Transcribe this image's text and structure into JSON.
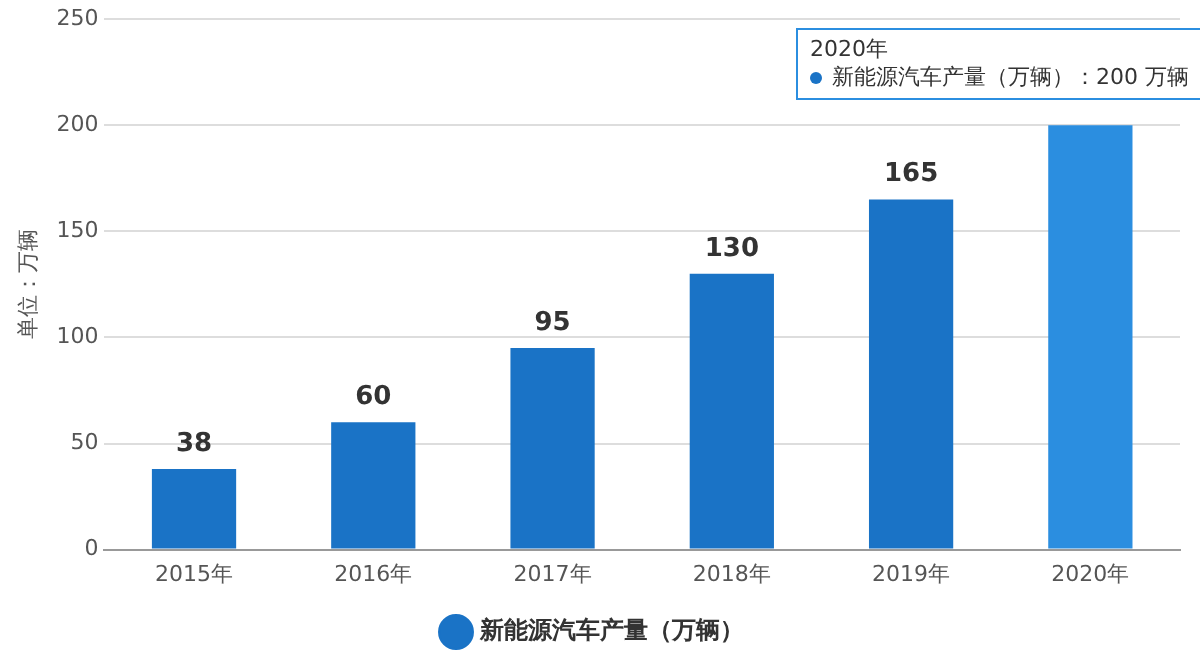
{
  "chart_data": {
    "type": "bar",
    "ylabel": "单位：万辆",
    "categories": [
      "2015年",
      "2016年",
      "2017年",
      "2018年",
      "2019年",
      "2020年"
    ],
    "series": [
      {
        "name": "新能源汽车产量（万辆）",
        "color": "#1a73c6",
        "colors": [
          "#1a73c6",
          "#1a73c6",
          "#1a73c6",
          "#1a73c6",
          "#1a73c6",
          "#2b8ee0"
        ],
        "values": [
          38,
          60,
          95,
          130,
          165,
          200
        ],
        "value_labels": [
          "38",
          "60",
          "95",
          "130",
          "165",
          null
        ]
      }
    ],
    "ylim": [
      0,
      250
    ],
    "yticks": [
      0,
      50,
      100,
      150,
      200,
      250
    ],
    "grid": "y",
    "legend": "bottom",
    "annotations": [
      "2020年",
      "新能源汽车产量（万辆）：200 万辆"
    ]
  }
}
